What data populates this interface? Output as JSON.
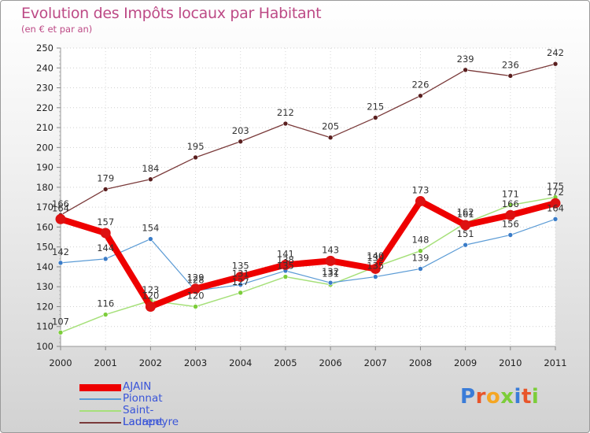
{
  "title": "Evolution des Impôts locaux par Habitant",
  "subtitle": "(en € et par an)",
  "logo": "Proxiti",
  "chart_data": {
    "type": "line",
    "title": "Evolution des Impôts locaux par Habitant",
    "ylabel": "(en € et par an)",
    "xlabel": "",
    "ylim": [
      100,
      250
    ],
    "y_ticks": [
      100,
      110,
      120,
      130,
      140,
      150,
      160,
      170,
      180,
      190,
      200,
      210,
      220,
      230,
      240,
      250
    ],
    "categories": [
      "2000",
      "2001",
      "2002",
      "2003",
      "2004",
      "2005",
      "2006",
      "2007",
      "2008",
      "2009",
      "2010",
      "2011"
    ],
    "legend_position": "bottom-left",
    "series": [
      {
        "name": "AJAIN",
        "color": "#ee0000",
        "point_color": "#dd1111",
        "values": [
          164,
          157,
          120,
          129,
          135,
          141,
          143,
          139,
          173,
          161,
          166,
          172
        ]
      },
      {
        "name": "Pionnat",
        "color": "#5b9bd5",
        "point_color": "#3a7cc8",
        "values": [
          142,
          144,
          154,
          128,
          131,
          138,
          132,
          135,
          139,
          151,
          156,
          164
        ]
      },
      {
        "name": "Saint-Laurent",
        "color": "#a6e07a",
        "point_color": "#7ccd3a",
        "values": [
          107,
          116,
          123,
          120,
          127,
          135,
          131,
          140,
          148,
          162,
          171,
          175
        ]
      },
      {
        "name": "Ladapeyre",
        "color": "#7a3a3a",
        "point_color": "#5a1f1f",
        "values": [
          166,
          179,
          184,
          195,
          203,
          212,
          205,
          215,
          226,
          239,
          236,
          242
        ]
      }
    ]
  }
}
